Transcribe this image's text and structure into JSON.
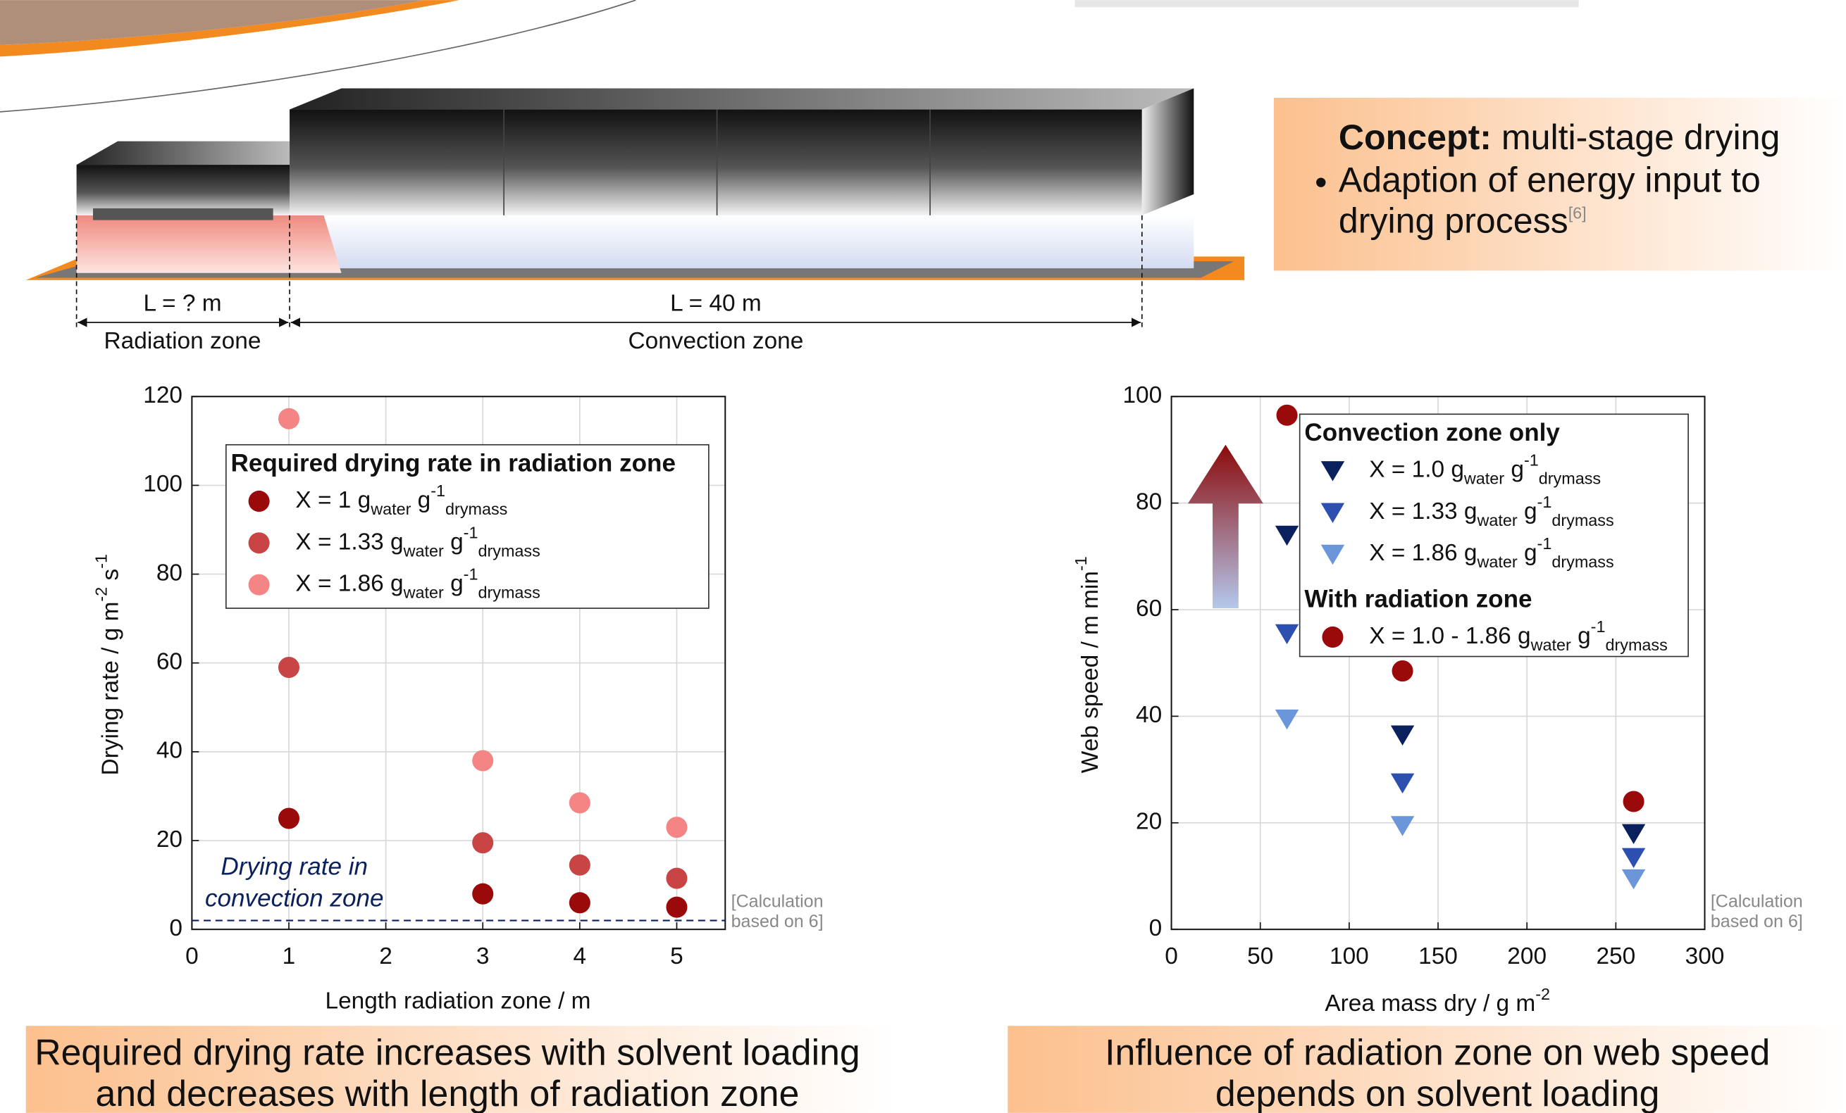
{
  "header": {
    "concept": {
      "label": "Concept:",
      "text": " multi-stage drying",
      "bullet": [
        "Adaption of energy input to",
        "drying process"
      ],
      "reference": "[6]"
    }
  },
  "diagram": {
    "zones": [
      {
        "length": "L = ? m",
        "name": "Radiation zone"
      },
      {
        "length": "L = 40 m",
        "name": "Convection zone"
      }
    ]
  },
  "chart_data": [
    {
      "type": "scatter",
      "legend_title": "Required drying rate in radiation zone",
      "x": [
        1,
        3,
        4,
        5
      ],
      "series": [
        {
          "name": [
            {
              "text": "X = 1 g",
              "style": "normal"
            },
            {
              "text": "water",
              "style": "sub"
            },
            {
              "text": " g",
              "style": "normal"
            },
            {
              "text": "-1",
              "style": "super"
            },
            {
              "text": "drymass",
              "style": "sub"
            }
          ],
          "color": "#9b0a0a",
          "marker": "circle",
          "values": [
            25,
            8,
            6,
            5
          ]
        },
        {
          "name": [
            {
              "text": "X = 1.33 g",
              "style": "normal"
            },
            {
              "text": "water",
              "style": "sub"
            },
            {
              "text": " g",
              "style": "normal"
            },
            {
              "text": "-1",
              "style": "super"
            },
            {
              "text": "drymass",
              "style": "sub"
            }
          ],
          "color": "#c94545",
          "marker": "circle",
          "values": [
            59,
            19.5,
            14.5,
            11.5
          ]
        },
        {
          "name": [
            {
              "text": "X = 1.86 g",
              "style": "normal"
            },
            {
              "text": "water",
              "style": "sub"
            },
            {
              "text": " g",
              "style": "normal"
            },
            {
              "text": "-1",
              "style": "super"
            },
            {
              "text": "drymass",
              "style": "sub"
            }
          ],
          "color": "#f58585",
          "marker": "circle",
          "values": [
            115,
            38,
            28.5,
            23
          ]
        }
      ],
      "xlabel": "Length radiation zone / m",
      "ylabel": [
        {
          "text": "Drying rate / g m",
          "style": "normal"
        },
        {
          "text": "-2",
          "style": "super"
        },
        {
          "text": " s",
          "style": "normal"
        },
        {
          "text": "-1",
          "style": "super"
        }
      ],
      "xlim": [
        0,
        5.5
      ],
      "xticks": [
        0,
        1,
        2,
        3,
        4,
        5
      ],
      "ylim": [
        0,
        120
      ],
      "yticks": [
        0,
        20,
        40,
        60,
        80,
        100,
        120
      ],
      "grid": true,
      "hline": 2,
      "annotation": [
        "Drying rate in",
        "convection zone"
      ],
      "note": [
        "[Calculation",
        "based on 6]"
      ],
      "caption": [
        "Required drying rate increases with solvent loading",
        "and decreases with length of radiation zone"
      ]
    },
    {
      "type": "scatter",
      "x": [
        65,
        130,
        260
      ],
      "series_groups": [
        {
          "name": "Convection zone only",
          "series": [
            {
              "name": [
                {
                  "text": "X = 1.0 g",
                  "style": "normal"
                },
                {
                  "text": "water",
                  "style": "sub"
                },
                {
                  "text": " g",
                  "style": "normal"
                },
                {
                  "text": "-1",
                  "style": "super"
                },
                {
                  "text": "drymass",
                  "style": "sub"
                }
              ],
              "color": "#0b215e",
              "marker": "triangle-down",
              "values": [
                74,
                36.5,
                18
              ]
            },
            {
              "name": [
                {
                  "text": "X = 1.33 g",
                  "style": "normal"
                },
                {
                  "text": "water",
                  "style": "sub"
                },
                {
                  "text": " g",
                  "style": "normal"
                },
                {
                  "text": "-1",
                  "style": "super"
                },
                {
                  "text": "drymass",
                  "style": "sub"
                }
              ],
              "color": "#2d4fb0",
              "marker": "triangle-down",
              "values": [
                55.5,
                27.5,
                13.5
              ]
            },
            {
              "name": [
                {
                  "text": "X = 1.86 g",
                  "style": "normal"
                },
                {
                  "text": "water",
                  "style": "sub"
                },
                {
                  "text": " g",
                  "style": "normal"
                },
                {
                  "text": "-1",
                  "style": "super"
                },
                {
                  "text": "drymass",
                  "style": "sub"
                }
              ],
              "color": "#6b96d9",
              "marker": "triangle-down",
              "values": [
                39.5,
                19.5,
                9.5
              ]
            }
          ]
        },
        {
          "name": "With radiation zone",
          "series": [
            {
              "name": [
                {
                  "text": "X = 1.0 - 1.86 g",
                  "style": "normal"
                },
                {
                  "text": "water",
                  "style": "sub"
                },
                {
                  "text": " g",
                  "style": "normal"
                },
                {
                  "text": "-1",
                  "style": "super"
                },
                {
                  "text": "drymass",
                  "style": "sub"
                }
              ],
              "color": "#9b0a0a",
              "marker": "circle",
              "values": [
                96.5,
                48.5,
                24
              ]
            }
          ]
        }
      ],
      "xlabel": [
        {
          "text": "Area mass dry / g m",
          "style": "normal"
        },
        {
          "text": "-2",
          "style": "super"
        }
      ],
      "ylabel": [
        {
          "text": "Web speed / m min",
          "style": "normal"
        },
        {
          "text": "-1",
          "style": "super"
        }
      ],
      "xlim": [
        0,
        300
      ],
      "xticks": [
        0,
        50,
        100,
        150,
        200,
        250,
        300
      ],
      "ylim": [
        0,
        100
      ],
      "yticks": [
        0,
        20,
        40,
        60,
        80,
        100
      ],
      "grid": true,
      "note": [
        "[Calculation",
        "based on 6]"
      ],
      "caption": [
        "Influence of radiation zone on web speed",
        "depends on solvent loading"
      ]
    }
  ]
}
